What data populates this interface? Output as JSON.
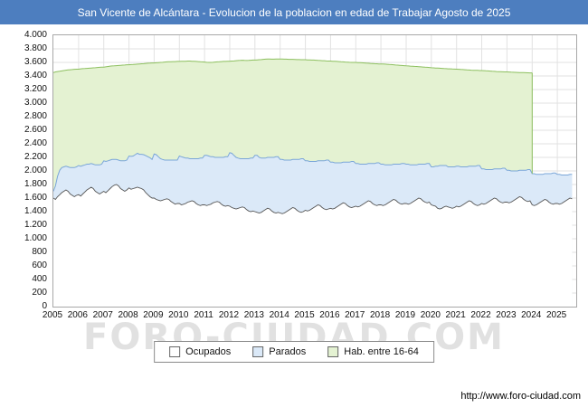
{
  "title": "San Vicente de Alcántara - Evolucion de la poblacion en edad de Trabajar Agosto de 2025",
  "watermark": "FORO-CIUDAD.COM",
  "footer_url": "http://www.foro-ciudad.com",
  "chart_data": {
    "type": "area",
    "title": "San Vicente de Alcántara - Evolucion de la poblacion en edad de Trabajar Agosto de 2025",
    "x_start_year": 2005,
    "x_end_month_label": "Agosto 2025",
    "x_resolution": "monthly",
    "ylim": [
      0,
      4000
    ],
    "ytick_step": 200,
    "grid": true,
    "legend_position": "bottom-center",
    "y_tick_labels": [
      "4.000",
      "3.800",
      "3.600",
      "3.400",
      "3.200",
      "3.000",
      "2.800",
      "2.600",
      "2.400",
      "2.200",
      "2.000",
      "1.800",
      "1.600",
      "1.400",
      "1.200",
      "1.000",
      "800",
      "600",
      "400",
      "200",
      "0"
    ],
    "year_labels": [
      "2005",
      "2006",
      "2007",
      "2008",
      "2009",
      "2010",
      "2011",
      "2012",
      "2013",
      "2014",
      "2015",
      "2016",
      "2017",
      "2018",
      "2019",
      "2020",
      "2021",
      "2022",
      "2023",
      "2024",
      "2025"
    ],
    "legend": [
      {
        "label": "Ocupados",
        "fill": "#ffffff",
        "line": "#555555"
      },
      {
        "label": "Parados",
        "fill": "#dbe9f8",
        "line": "#7aa6d8"
      },
      {
        "label": "Hab. entre 16-64",
        "fill": "#e4f2d2",
        "line": "#8cbf5e"
      }
    ],
    "stacked": "Parados area is drawn stacked on top of Ocupados; Hab. entre 16-64 is total working-age population",
    "series": [
      {
        "name": "Ocupados",
        "monthly_by_year": [
          [
            1600,
            1580,
            1620,
            1650,
            1680,
            1700,
            1720,
            1700,
            1660,
            1640,
            1620,
            1640
          ],
          [
            1650,
            1630,
            1660,
            1690,
            1720,
            1740,
            1760,
            1740,
            1700,
            1680,
            1660,
            1680
          ],
          [
            1700,
            1680,
            1710,
            1740,
            1770,
            1790,
            1800,
            1780,
            1740,
            1720,
            1700,
            1720
          ],
          [
            1750,
            1730,
            1740,
            1750,
            1760,
            1750,
            1740,
            1720,
            1680,
            1650,
            1620,
            1600
          ],
          [
            1600,
            1580,
            1570,
            1560,
            1570,
            1580,
            1590,
            1580,
            1550,
            1530,
            1510,
            1520
          ],
          [
            1520,
            1500,
            1510,
            1520,
            1540,
            1550,
            1560,
            1550,
            1520,
            1500,
            1490,
            1500
          ],
          [
            1500,
            1490,
            1500,
            1510,
            1530,
            1540,
            1550,
            1540,
            1510,
            1490,
            1480,
            1490
          ],
          [
            1480,
            1460,
            1450,
            1440,
            1450,
            1460,
            1470,
            1460,
            1430,
            1410,
            1400,
            1410
          ],
          [
            1400,
            1390,
            1380,
            1390,
            1410,
            1430,
            1450,
            1440,
            1410,
            1390,
            1380,
            1390
          ],
          [
            1380,
            1370,
            1380,
            1400,
            1420,
            1440,
            1460,
            1450,
            1420,
            1400,
            1390,
            1400
          ],
          [
            1420,
            1410,
            1420,
            1440,
            1460,
            1480,
            1500,
            1490,
            1460,
            1440,
            1430,
            1440
          ],
          [
            1450,
            1440,
            1450,
            1470,
            1490,
            1510,
            1530,
            1520,
            1490,
            1470,
            1460,
            1470
          ],
          [
            1480,
            1470,
            1480,
            1500,
            1520,
            1540,
            1560,
            1550,
            1520,
            1500,
            1490,
            1500
          ],
          [
            1500,
            1490,
            1500,
            1520,
            1540,
            1560,
            1580,
            1570,
            1540,
            1520,
            1510,
            1520
          ],
          [
            1520,
            1510,
            1520,
            1540,
            1560,
            1580,
            1600,
            1590,
            1560,
            1540,
            1530,
            1540
          ],
          [
            1500,
            1490,
            1480,
            1450,
            1440,
            1450,
            1470,
            1480,
            1470,
            1460,
            1450,
            1460
          ],
          [
            1480,
            1470,
            1480,
            1500,
            1520,
            1540,
            1560,
            1550,
            1520,
            1500,
            1490,
            1500
          ],
          [
            1520,
            1510,
            1520,
            1540,
            1560,
            1580,
            1600,
            1590,
            1560,
            1540,
            1530,
            1540
          ],
          [
            1540,
            1530,
            1540,
            1560,
            1580,
            1600,
            1620,
            1610,
            1580,
            1560,
            1550,
            1560
          ],
          [
            1500,
            1490,
            1500,
            1520,
            1540,
            1560,
            1580,
            1570,
            1540,
            1520,
            1510,
            1520
          ],
          [
            1520,
            1510,
            1520,
            1540,
            1560,
            1580,
            1600,
            1590
          ]
        ]
      },
      {
        "name": "Parados",
        "monthly_by_year": [
          [
            100,
            200,
            300,
            360,
            370,
            360,
            350,
            360,
            390,
            410,
            430,
            420
          ],
          [
            430,
            440,
            420,
            400,
            380,
            360,
            350,
            360,
            390,
            410,
            430,
            420
          ],
          [
            450,
            460,
            440,
            420,
            400,
            380,
            370,
            380,
            410,
            430,
            450,
            440
          ],
          [
            470,
            485,
            480,
            490,
            500,
            495,
            505,
            520,
            545,
            560,
            575,
            570
          ],
          [
            650,
            660,
            640,
            620,
            600,
            580,
            570,
            580,
            610,
            630,
            650,
            640
          ],
          [
            700,
            710,
            690,
            670,
            650,
            630,
            620,
            630,
            660,
            680,
            700,
            690
          ],
          [
            730,
            740,
            720,
            700,
            680,
            660,
            650,
            660,
            690,
            710,
            730,
            720
          ],
          [
            790,
            800,
            780,
            760,
            740,
            720,
            710,
            720,
            750,
            770,
            790,
            780
          ],
          [
            830,
            840,
            820,
            800,
            780,
            760,
            750,
            760,
            790,
            810,
            830,
            820
          ],
          [
            790,
            800,
            780,
            760,
            740,
            720,
            710,
            720,
            750,
            770,
            790,
            780
          ],
          [
            730,
            740,
            720,
            700,
            680,
            660,
            650,
            660,
            690,
            710,
            730,
            720
          ],
          [
            680,
            690,
            670,
            650,
            630,
            610,
            600,
            610,
            640,
            660,
            680,
            670
          ],
          [
            630,
            640,
            620,
            600,
            580,
            560,
            550,
            560,
            590,
            610,
            630,
            620
          ],
          [
            600,
            610,
            590,
            570,
            550,
            530,
            520,
            530,
            560,
            580,
            600,
            590
          ],
          [
            580,
            590,
            570,
            550,
            530,
            510,
            500,
            510,
            540,
            560,
            580,
            570
          ],
          [
            560,
            570,
            590,
            620,
            640,
            630,
            610,
            600,
            590,
            600,
            610,
            600
          ],
          [
            590,
            600,
            580,
            560,
            540,
            520,
            510,
            520,
            550,
            570,
            590,
            580
          ],
          [
            510,
            520,
            500,
            480,
            460,
            440,
            430,
            440,
            470,
            490,
            510,
            500
          ],
          [
            470,
            480,
            460,
            440,
            420,
            400,
            390,
            400,
            430,
            450,
            470,
            460
          ],
          [
            460,
            470,
            450,
            430,
            410,
            390,
            380,
            390,
            420,
            440,
            460,
            450
          ],
          [
            430,
            440,
            420,
            400,
            380,
            360,
            350,
            360
          ]
        ]
      },
      {
        "name": "Hab. entre 16-64",
        "data_ends": "2024-01",
        "monthly_by_year": [
          [
            3450,
            3460,
            3465,
            3470,
            3475,
            3480,
            3485,
            3490,
            3492,
            3495,
            3498,
            3500
          ],
          [
            3500,
            3505,
            3508,
            3510,
            3512,
            3515,
            3518,
            3520,
            3522,
            3525,
            3528,
            3530
          ],
          [
            3530,
            3535,
            3540,
            3545,
            3548,
            3550,
            3552,
            3555,
            3558,
            3560,
            3562,
            3565
          ],
          [
            3565,
            3568,
            3570,
            3572,
            3575,
            3578,
            3580,
            3582,
            3585,
            3588,
            3590,
            3592
          ],
          [
            3592,
            3595,
            3598,
            3600,
            3602,
            3605,
            3608,
            3610,
            3610,
            3612,
            3612,
            3615
          ],
          [
            3615,
            3616,
            3618,
            3618,
            3620,
            3620,
            3618,
            3616,
            3615,
            3612,
            3610,
            3608
          ],
          [
            3605,
            3602,
            3600,
            3600,
            3602,
            3605,
            3608,
            3610,
            3612,
            3615,
            3615,
            3618
          ],
          [
            3618,
            3620,
            3622,
            3625,
            3628,
            3630,
            3632,
            3630,
            3628,
            3630,
            3632,
            3635
          ],
          [
            3635,
            3638,
            3640,
            3642,
            3645,
            3648,
            3650,
            3650,
            3648,
            3648,
            3650,
            3650
          ],
          [
            3650,
            3650,
            3648,
            3648,
            3646,
            3645,
            3645,
            3644,
            3642,
            3642,
            3640,
            3640
          ],
          [
            3640,
            3638,
            3636,
            3635,
            3634,
            3632,
            3630,
            3628,
            3626,
            3625,
            3622,
            3620
          ],
          [
            3620,
            3618,
            3616,
            3614,
            3612,
            3610,
            3608,
            3606,
            3604,
            3602,
            3600,
            3600
          ],
          [
            3600,
            3598,
            3596,
            3594,
            3592,
            3590,
            3588,
            3586,
            3584,
            3582,
            3580,
            3578
          ],
          [
            3578,
            3576,
            3574,
            3572,
            3570,
            3568,
            3566,
            3562,
            3560,
            3558,
            3555,
            3552
          ],
          [
            3550,
            3548,
            3546,
            3544,
            3542,
            3540,
            3538,
            3535,
            3532,
            3530,
            3528,
            3525
          ],
          [
            3522,
            3520,
            3518,
            3516,
            3514,
            3512,
            3510,
            3508,
            3506,
            3505,
            3503,
            3502
          ],
          [
            3500,
            3498,
            3496,
            3494,
            3492,
            3490,
            3488,
            3486,
            3484,
            3483,
            3482,
            3480
          ],
          [
            3480,
            3478,
            3476,
            3474,
            3472,
            3470,
            3468,
            3466,
            3464,
            3462,
            3461,
            3460
          ],
          [
            3460,
            3458,
            3456,
            3455,
            3453,
            3452,
            3450,
            3450,
            3449,
            3448,
            3447,
            3446
          ],
          [
            3445
          ]
        ]
      }
    ]
  }
}
